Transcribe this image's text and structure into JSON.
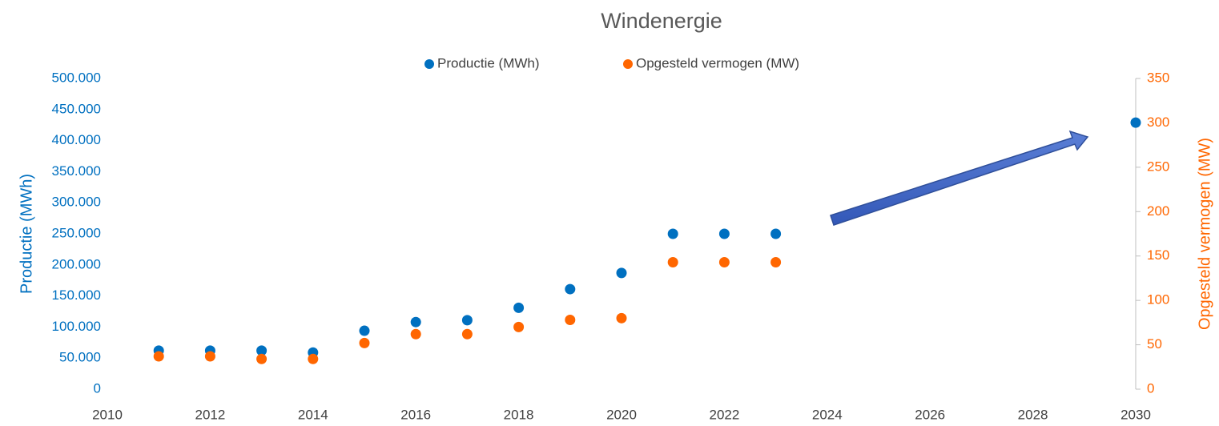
{
  "chart_data": {
    "type": "scatter",
    "title": "Windenergie",
    "x": [
      2011,
      2012,
      2013,
      2014,
      2015,
      2016,
      2017,
      2018,
      2019,
      2020,
      2021,
      2022,
      2023,
      2030
    ],
    "series": [
      {
        "name": "Productie (MWh)",
        "color": "#0070c0",
        "values": [
          62000,
          62000,
          62000,
          59000,
          94000,
          108000,
          111000,
          131000,
          161000,
          187000,
          250000,
          250000,
          250000,
          429000
        ]
      },
      {
        "name": "Opgesteld vermogen (MW)",
        "color": "#ff6600",
        "axis": "y2",
        "values": [
          37,
          37,
          34,
          34,
          52,
          62,
          62,
          70,
          78,
          80,
          143,
          143,
          143,
          null
        ]
      }
    ],
    "ylabel": "Productie (MWh)",
    "y2label": "Opgesteld vermogen (MW)",
    "xlim": [
      2010,
      2030
    ],
    "xticks": [
      2010,
      2012,
      2014,
      2016,
      2018,
      2020,
      2022,
      2024,
      2026,
      2028,
      2030
    ],
    "ylim": [
      0,
      500000
    ],
    "yticks": [
      0,
      {
        "value": 50000,
        "label": "50.000"
      },
      {
        "value": 100000,
        "label": "100.000"
      },
      {
        "value": 150000,
        "label": "150.000"
      },
      {
        "value": 200000,
        "label": "200.000"
      },
      {
        "value": 250000,
        "label": "250.000"
      },
      {
        "value": 300000,
        "label": "300.000"
      },
      {
        "value": 350000,
        "label": "350.000"
      },
      {
        "value": 400000,
        "label": "400.000"
      },
      {
        "value": 450000,
        "label": "450.000"
      },
      {
        "value": 500000,
        "label": "500.000"
      }
    ],
    "y2lim": [
      0,
      350
    ],
    "y2ticks": [
      0,
      50,
      100,
      150,
      200,
      250,
      300,
      350
    ],
    "legend": "top",
    "grid": false
  }
}
